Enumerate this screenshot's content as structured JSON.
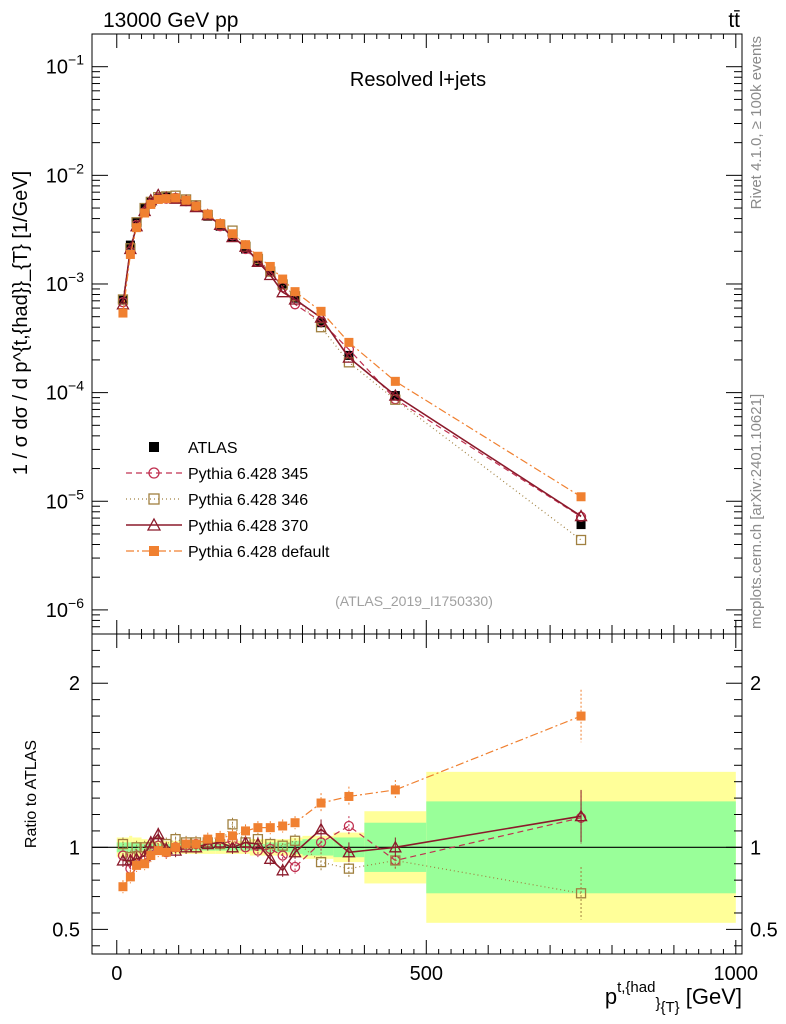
{
  "header": {
    "left": "13000 GeV pp",
    "right": "tt̄"
  },
  "side_labels": {
    "rivet": "Rivet 4.1.0, ≥ 100k events",
    "mcplots": "mcplots.cern.ch [arXiv:2401.10621]"
  },
  "chart_data": {
    "type": "scatter",
    "title": "Resolved l+jets",
    "reference": "(ATLAS_2019_I1750330)",
    "xlabel": {
      "main": "p",
      "sup": "t,{had",
      "sub": "}",
      "sub2": "{T}",
      "unit": " [GeV]"
    },
    "ylabel": "1 / σ dσ / d p^{t,{had}}_{T} [1/GeV]",
    "ratio_ylabel": "Ratio to ATLAS",
    "xlim": [
      -40,
      1010
    ],
    "ylim": [
      6e-07,
      0.2
    ],
    "ratio_ylim": [
      0.35,
      2.3
    ],
    "x_ticks": [
      0,
      500,
      1000
    ],
    "x_tick_labels": [
      "0",
      "500",
      "1000"
    ],
    "y_ticks": [
      {
        "v": 0.1,
        "base": "10",
        "exp": "−1"
      },
      {
        "v": 0.01,
        "base": "10",
        "exp": "−2"
      },
      {
        "v": 0.001,
        "base": "10",
        "exp": "−3"
      },
      {
        "v": 0.0001,
        "base": "10",
        "exp": "−4"
      },
      {
        "v": 1e-05,
        "base": "10",
        "exp": "−5"
      },
      {
        "v": 1e-06,
        "base": "10",
        "exp": "−6"
      }
    ],
    "ratio_ticks": [
      0.5,
      1,
      2
    ],
    "ratio_tick_labels": [
      "0.5",
      "1",
      "2"
    ],
    "bins": [
      {
        "x": 10,
        "lo": 0,
        "hi": 20
      },
      {
        "x": 22,
        "lo": 20,
        "hi": 25
      },
      {
        "x": 32,
        "lo": 25,
        "hi": 40
      },
      {
        "x": 45,
        "lo": 40,
        "hi": 50
      },
      {
        "x": 55,
        "lo": 50,
        "hi": 60
      },
      {
        "x": 67,
        "lo": 60,
        "hi": 75
      },
      {
        "x": 80,
        "lo": 75,
        "hi": 85
      },
      {
        "x": 95,
        "lo": 85,
        "hi": 105
      },
      {
        "x": 112,
        "lo": 105,
        "hi": 120
      },
      {
        "x": 128,
        "lo": 120,
        "hi": 135
      },
      {
        "x": 147,
        "lo": 135,
        "hi": 160
      },
      {
        "x": 167,
        "lo": 160,
        "hi": 175
      },
      {
        "x": 187,
        "lo": 175,
        "hi": 200
      },
      {
        "x": 208,
        "lo": 200,
        "hi": 215
      },
      {
        "x": 228,
        "lo": 215,
        "hi": 240
      },
      {
        "x": 248,
        "lo": 240,
        "hi": 255
      },
      {
        "x": 268,
        "lo": 255,
        "hi": 280
      },
      {
        "x": 288,
        "lo": 280,
        "hi": 300
      },
      {
        "x": 330,
        "lo": 300,
        "hi": 350
      },
      {
        "x": 375,
        "lo": 350,
        "hi": 400
      },
      {
        "x": 450,
        "lo": 400,
        "hi": 500
      },
      {
        "x": 750,
        "lo": 500,
        "hi": 1000
      }
    ],
    "band_outer": [
      0.06,
      0.07,
      0.06,
      0.05,
      0.04,
      0.04,
      0.04,
      0.04,
      0.04,
      0.04,
      0.04,
      0.04,
      0.04,
      0.04,
      0.05,
      0.05,
      0.05,
      0.06,
      0.07,
      0.09,
      0.22,
      0.46
    ],
    "band_inner": [
      0.03,
      0.03,
      0.03,
      0.02,
      0.02,
      0.02,
      0.02,
      0.02,
      0.02,
      0.02,
      0.02,
      0.02,
      0.02,
      0.02,
      0.02,
      0.03,
      0.03,
      0.04,
      0.05,
      0.06,
      0.15,
      0.28
    ],
    "series": [
      {
        "name": "ATLAS",
        "color": "#000000",
        "marker": "filled-square",
        "values": [
          0.00071,
          0.00228,
          0.0037,
          0.005,
          0.0057,
          0.0061,
          0.0063,
          0.0062,
          0.0058,
          0.0051,
          0.0042,
          0.0034,
          0.0027,
          0.0021,
          0.0016,
          0.0013,
          0.00098,
          0.00074,
          0.00044,
          0.00022,
          9.4e-05,
          6.1e-06
        ],
        "ratio": [
          1,
          1,
          1,
          1,
          1,
          1,
          1,
          1,
          1,
          1,
          1,
          1,
          1,
          1,
          1,
          1,
          1,
          1,
          1,
          1,
          1,
          1
        ]
      },
      {
        "name": "Pythia 6.428 345",
        "color": "#c03050",
        "marker": "open-circle",
        "dash": "6,4",
        "values": [
          0.00068,
          0.00199,
          0.0035,
          0.0046,
          0.0055,
          0.0062,
          0.0061,
          0.0062,
          0.0058,
          0.0052,
          0.0043,
          0.0034,
          0.0028,
          0.0021,
          0.0016,
          0.0013,
          0.00093,
          0.00065,
          0.00045,
          0.00025,
          8.7e-05,
          7.2e-06
        ],
        "ratio": [
          0.95,
          0.87,
          0.95,
          0.92,
          0.97,
          1.01,
          0.97,
          1.0,
          1.01,
          1.02,
          1.03,
          1.02,
          1.04,
          1.0,
          0.98,
          0.99,
          0.95,
          0.88,
          1.03,
          1.13,
          0.92,
          1.18
        ]
      },
      {
        "name": "Pythia 6.428 346",
        "color": "#a08040",
        "marker": "open-square",
        "dash": "1,3",
        "values": [
          0.00072,
          0.00213,
          0.0037,
          0.005,
          0.0057,
          0.0063,
          0.0064,
          0.0065,
          0.006,
          0.0053,
          0.0043,
          0.0035,
          0.0031,
          0.0022,
          0.0017,
          0.0013,
          0.00099,
          0.00077,
          0.0004,
          0.00019,
          8.6e-05,
          4.4e-06
        ],
        "ratio": [
          1.02,
          0.94,
          1.0,
          1.0,
          1.0,
          1.03,
          1.02,
          1.05,
          1.03,
          1.03,
          1.03,
          1.02,
          1.14,
          1.03,
          1.05,
          1.02,
          1.01,
          1.04,
          0.91,
          0.87,
          0.92,
          0.72
        ]
      },
      {
        "name": "Pythia 6.428 370",
        "color": "#8b1a2b",
        "marker": "open-triangle",
        "dash": "",
        "values": [
          0.00065,
          0.0021,
          0.0034,
          0.0047,
          0.0059,
          0.0066,
          0.0062,
          0.0061,
          0.0058,
          0.0051,
          0.0043,
          0.0035,
          0.0027,
          0.0022,
          0.0016,
          0.00121,
          0.00084,
          0.00072,
          0.00049,
          0.00021,
          9.4e-05,
          7.3e-06
        ],
        "ratio": [
          0.92,
          0.92,
          0.93,
          0.95,
          1.03,
          1.08,
          0.99,
          0.98,
          1.0,
          1.0,
          1.02,
          1.03,
          1.0,
          1.03,
          1.02,
          0.93,
          0.86,
          0.97,
          1.11,
          0.97,
          1.0,
          1.19
        ]
      },
      {
        "name": "Pythia 6.428 default",
        "color": "#f08030",
        "marker": "filled-square",
        "dash": "8,3,2,3",
        "values": [
          0.00054,
          0.00187,
          0.0033,
          0.0045,
          0.0054,
          0.006,
          0.0061,
          0.0062,
          0.0059,
          0.0052,
          0.0044,
          0.0036,
          0.0029,
          0.0023,
          0.0018,
          0.00145,
          0.00111,
          0.00085,
          0.00056,
          0.00029,
          0.000127,
          1.1e-05
        ],
        "ratio": [
          0.76,
          0.82,
          0.89,
          0.9,
          0.95,
          0.98,
          0.97,
          1.0,
          1.02,
          1.02,
          1.05,
          1.06,
          1.07,
          1.1,
          1.12,
          1.12,
          1.13,
          1.15,
          1.27,
          1.31,
          1.35,
          1.8
        ]
      }
    ]
  }
}
